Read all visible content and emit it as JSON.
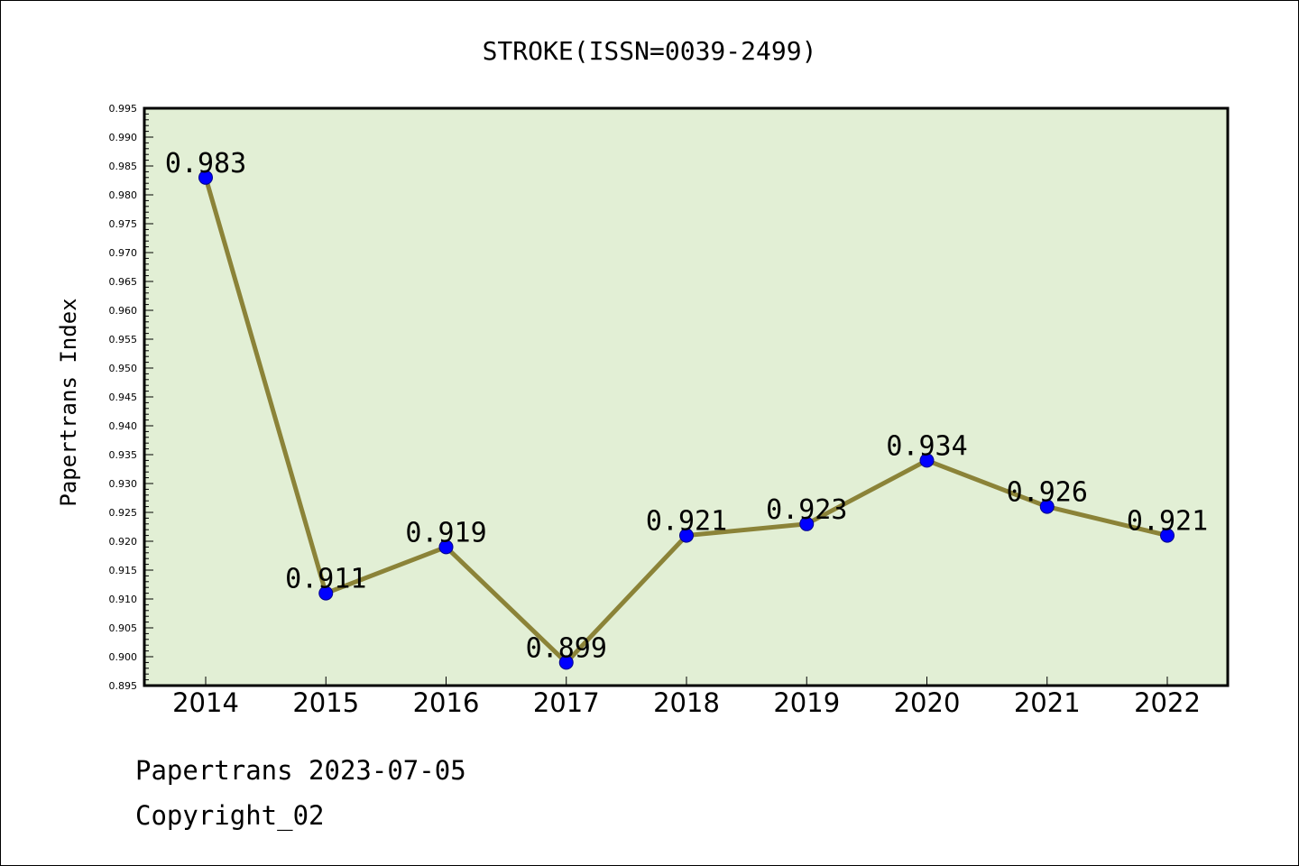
{
  "chart_data": {
    "type": "line",
    "title": "STROKE(ISSN=0039-2499)",
    "xlabel": "",
    "ylabel": "Papertrans Index",
    "categories": [
      "2014",
      "2015",
      "2016",
      "2017",
      "2018",
      "2019",
      "2020",
      "2021",
      "2022"
    ],
    "series": [
      {
        "values": [
          0.983,
          0.911,
          0.919,
          0.899,
          0.921,
          0.923,
          0.934,
          0.926,
          0.921
        ],
        "labels": [
          "0.983",
          "0.911",
          "0.919",
          "0.899",
          "0.921",
          "0.923",
          "0.934",
          "0.926",
          "0.921"
        ]
      }
    ],
    "ylim": [
      0.895,
      0.995
    ],
    "ytick_step": 0.005,
    "yticks": [
      "0.895",
      "0.900",
      "0.905",
      "0.910",
      "0.915",
      "0.920",
      "0.925",
      "0.930",
      "0.935",
      "0.940",
      "0.945",
      "0.950",
      "0.955",
      "0.960",
      "0.965",
      "0.970",
      "0.975",
      "0.980",
      "0.985",
      "0.990",
      "0.995"
    ],
    "grid": false,
    "colors": {
      "plot_background": "#e2efd5",
      "line": "#8b8338",
      "marker": "#0000ff"
    }
  },
  "footer": {
    "date_text": "Papertrans 2023-07-05",
    "copyright_text": "Copyright_02"
  }
}
